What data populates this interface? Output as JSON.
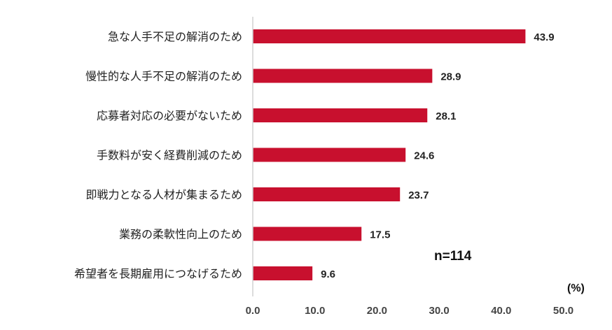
{
  "chart_data": {
    "type": "bar",
    "orientation": "horizontal",
    "categories": [
      "急な人手不足の解消のため",
      "慢性的な人手不足の解消のため",
      "応募者対応の必要がないため",
      "手数料が安く経費削減のため",
      "即戦力となる人材が集まるため",
      "業務の柔軟性向上のため",
      "希望者を長期雇用につなげるため"
    ],
    "values": [
      43.9,
      28.9,
      28.1,
      24.6,
      23.7,
      17.5,
      9.6
    ],
    "value_labels": [
      "43.9",
      "28.9",
      "28.1",
      "24.6",
      "23.7",
      "17.5",
      "9.6"
    ],
    "xlim": [
      0,
      50
    ],
    "xticks": [
      "0.0",
      "10.0",
      "20.0",
      "30.0",
      "40.0",
      "50.0"
    ],
    "unit": "(%)",
    "sample_note": "n=114",
    "grid": false,
    "colors": {
      "bar": "#c8102e",
      "axis": "#d0d0d0"
    }
  }
}
